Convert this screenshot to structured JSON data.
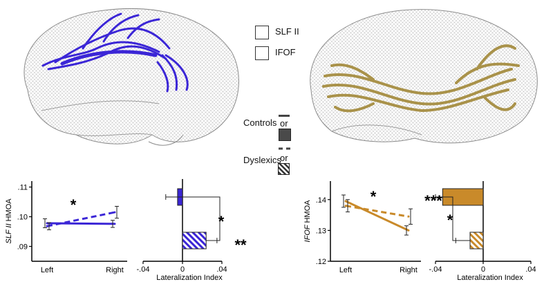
{
  "legend": {
    "tracts": [
      {
        "name": "SLF II",
        "color": "#3b26d6"
      },
      {
        "name": "IFOF",
        "color": "#c98a2a"
      }
    ],
    "groups": [
      {
        "name": "Controls",
        "or": "or",
        "line": "solid",
        "fill": "solid"
      },
      {
        "name": "Dyslexics",
        "or": "or",
        "line": "dashed",
        "fill": "hatched"
      }
    ]
  },
  "colors": {
    "slf": "#3b26d6",
    "ifof": "#c98a2a",
    "brain": "#c8c8c8",
    "axis": "#000000"
  },
  "chart_data": [
    {
      "type": "line",
      "tract": "SLF II",
      "ylabel_italic": "SLF II",
      "ylabel": "HMOA",
      "categories": [
        "Left",
        "Right"
      ],
      "yticks": [
        ".09",
        ".10",
        ".11"
      ],
      "ylim": [
        0.085,
        0.112
      ],
      "series": [
        {
          "name": "Controls",
          "style": "solid",
          "values": [
            0.0978,
            0.0976
          ],
          "err": [
            0.0015,
            0.0012
          ]
        },
        {
          "name": "Dyslexics",
          "style": "dashed",
          "values": [
            0.0968,
            0.1015
          ],
          "err": [
            0.0012,
            0.002
          ]
        }
      ],
      "significance": [
        {
          "label": "*",
          "at": "interaction"
        }
      ]
    },
    {
      "type": "bar",
      "tract": "SLF II",
      "orientation": "horizontal",
      "xlabel": "Lateralization Index",
      "xticks": [
        "-.04",
        "0",
        ".04"
      ],
      "xlim": [
        -0.04,
        0.04
      ],
      "bars": [
        {
          "name": "Controls",
          "value": -0.005,
          "err": 0.012,
          "fill": "solid"
        },
        {
          "name": "Dyslexics",
          "value": 0.024,
          "err": 0.011,
          "fill": "hatched"
        }
      ],
      "significance": [
        {
          "label": "*",
          "between": "groups"
        },
        {
          "label": "**",
          "vs": "zero"
        }
      ]
    },
    {
      "type": "line",
      "tract": "IFOF",
      "ylabel_italic": "IFOF",
      "ylabel": "HMOA",
      "categories": [
        "Left",
        "Right"
      ],
      "yticks": [
        ".12",
        ".13",
        ".14"
      ],
      "ylim": [
        0.12,
        0.146
      ],
      "series": [
        {
          "name": "Controls",
          "style": "solid",
          "values": [
            0.1395,
            0.13
          ],
          "err": [
            0.002,
            0.0015
          ]
        },
        {
          "name": "Dyslexics",
          "style": "dashed",
          "values": [
            0.138,
            0.1345
          ],
          "err": [
            0.002,
            0.0025
          ]
        }
      ],
      "significance": [
        {
          "label": "*",
          "at": "interaction"
        }
      ]
    },
    {
      "type": "bar",
      "tract": "IFOF",
      "orientation": "horizontal",
      "xlabel": "Lateralization Index",
      "xticks": [
        "-.04",
        "0",
        ".04"
      ],
      "xlim": [
        -0.04,
        0.04
      ],
      "bars": [
        {
          "name": "Controls",
          "value": -0.034,
          "err": 0.006,
          "fill": "solid"
        },
        {
          "name": "Dyslexics",
          "value": -0.011,
          "err": 0.012,
          "fill": "hatched"
        }
      ],
      "significance": [
        {
          "label": "***",
          "vs": "zero"
        },
        {
          "label": "*",
          "between": "groups"
        }
      ]
    }
  ]
}
